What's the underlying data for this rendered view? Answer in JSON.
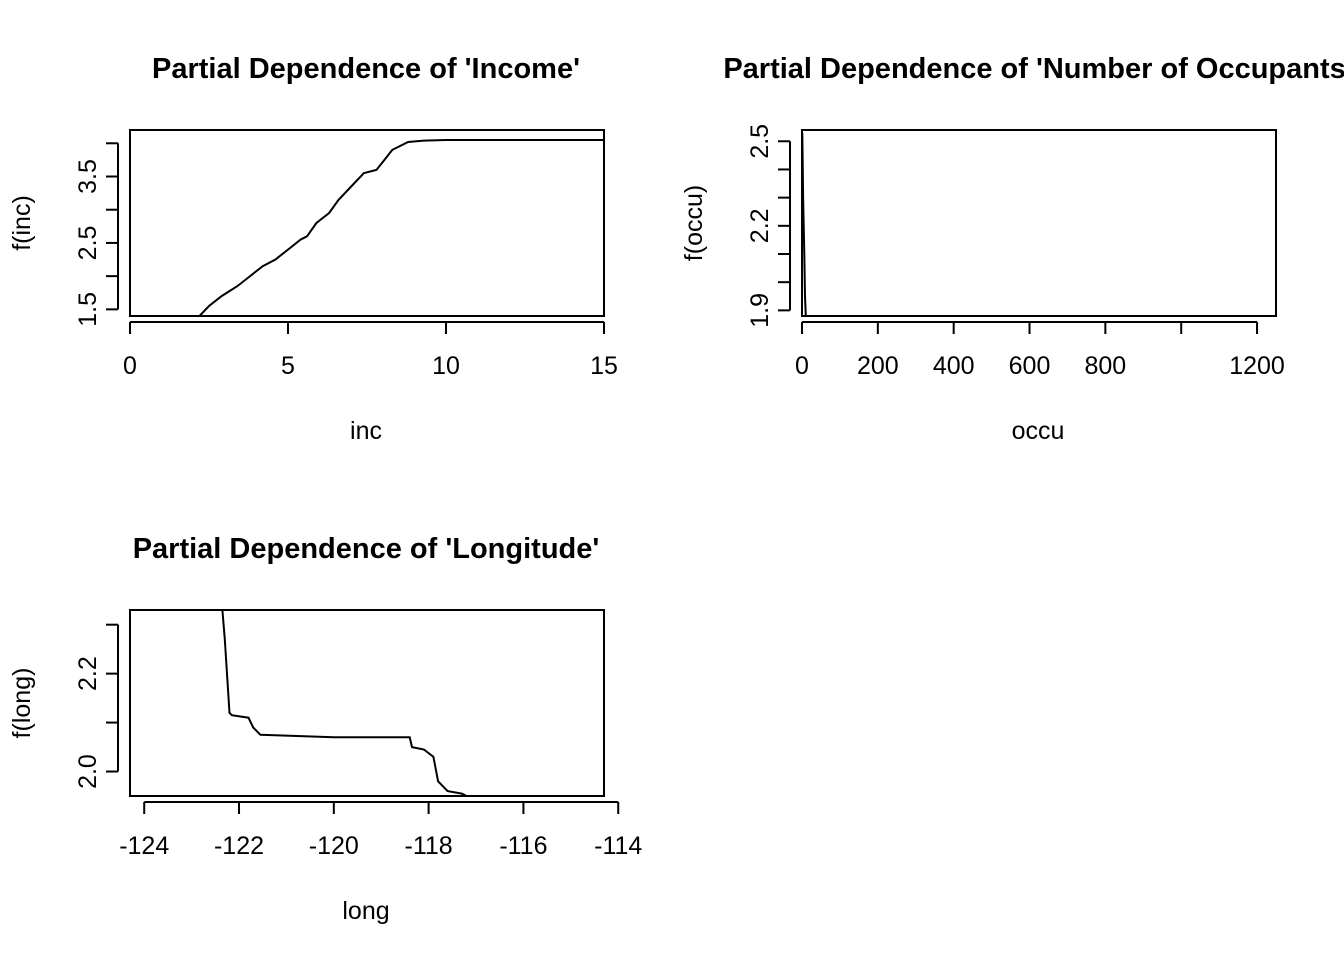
{
  "chart_data": [
    {
      "type": "line",
      "title": "Partial Dependence  of 'Income'",
      "xlabel": "inc",
      "ylabel": "f(inc)",
      "xlim": [
        0,
        15
      ],
      "ylim": [
        1.4,
        4.2
      ],
      "x_ticks": [
        0,
        5,
        10,
        15
      ],
      "x_tick_labels": [
        "0",
        "5",
        "10",
        "15"
      ],
      "y_ticks": [
        1.5,
        2.0,
        2.5,
        3.0,
        3.5,
        4.0
      ],
      "y_tick_labels": [
        "1.5",
        "",
        "2.5",
        "",
        "3.5",
        ""
      ],
      "grid": false,
      "series": [
        {
          "x": [
            0.5,
            2.2,
            2.5,
            2.9,
            3.4,
            3.8,
            4.2,
            4.6,
            5.0,
            5.4,
            5.6,
            5.9,
            6.3,
            6.6,
            7.0,
            7.4,
            7.8,
            8.3,
            8.8,
            9.3,
            10,
            11,
            12,
            13,
            14,
            15
          ],
          "y": [
            1.4,
            1.4,
            1.55,
            1.7,
            1.85,
            2.0,
            2.15,
            2.25,
            2.4,
            2.55,
            2.6,
            2.8,
            2.95,
            3.15,
            3.35,
            3.55,
            3.6,
            3.9,
            4.02,
            4.04,
            4.05,
            4.05,
            4.05,
            4.05,
            4.05,
            4.05
          ]
        }
      ]
    },
    {
      "type": "line",
      "title": "Partial Dependence  of 'Number of Occupants'",
      "xlabel": "occu",
      "ylabel": "f(occu)",
      "xlim": [
        0,
        1250
      ],
      "ylim": [
        1.88,
        2.54
      ],
      "x_ticks": [
        0,
        200,
        400,
        600,
        800,
        1000,
        1200
      ],
      "x_tick_labels": [
        "0",
        "200",
        "400",
        "600",
        "800",
        "",
        "1200"
      ],
      "y_ticks": [
        1.9,
        2.0,
        2.1,
        2.2,
        2.3,
        2.4,
        2.5
      ],
      "y_tick_labels": [
        "1.9",
        "",
        "",
        "2.2",
        "",
        "",
        "2.5"
      ],
      "grid": false,
      "series": [
        {
          "x": [
            0.7,
            1.5,
            3,
            6,
            8,
            10,
            1243
          ],
          "y": [
            2.53,
            2.45,
            2.3,
            2.1,
            1.95,
            1.88,
            1.88
          ]
        }
      ]
    },
    {
      "type": "line",
      "title": "Partial Dependence  of 'Longitude'",
      "xlabel": "long",
      "ylabel": "f(long)",
      "xlim": [
        -124.3,
        -114.3
      ],
      "ylim": [
        1.95,
        2.33
      ],
      "x_ticks": [
        -124,
        -122,
        -120,
        -118,
        -116,
        -114
      ],
      "x_tick_labels": [
        "-124",
        "-122",
        "-120",
        "-118",
        "-116",
        "-114"
      ],
      "y_ticks": [
        2.0,
        2.1,
        2.2,
        2.3
      ],
      "y_tick_labels": [
        "2.0",
        "",
        "2.2",
        ""
      ],
      "grid": false,
      "series": [
        {
          "x": [
            -124.3,
            -122.35,
            -122.3,
            -122.2,
            -122.15,
            -121.8,
            -121.7,
            -121.55,
            -120.0,
            -118.4,
            -118.35,
            -118.1,
            -117.9,
            -117.8,
            -117.6,
            -117.3,
            -117.2,
            -114.3
          ],
          "y": [
            2.33,
            2.33,
            2.27,
            2.12,
            2.115,
            2.11,
            2.09,
            2.075,
            2.07,
            2.07,
            2.05,
            2.045,
            2.03,
            1.98,
            1.96,
            1.955,
            1.95,
            1.95
          ]
        }
      ]
    }
  ]
}
